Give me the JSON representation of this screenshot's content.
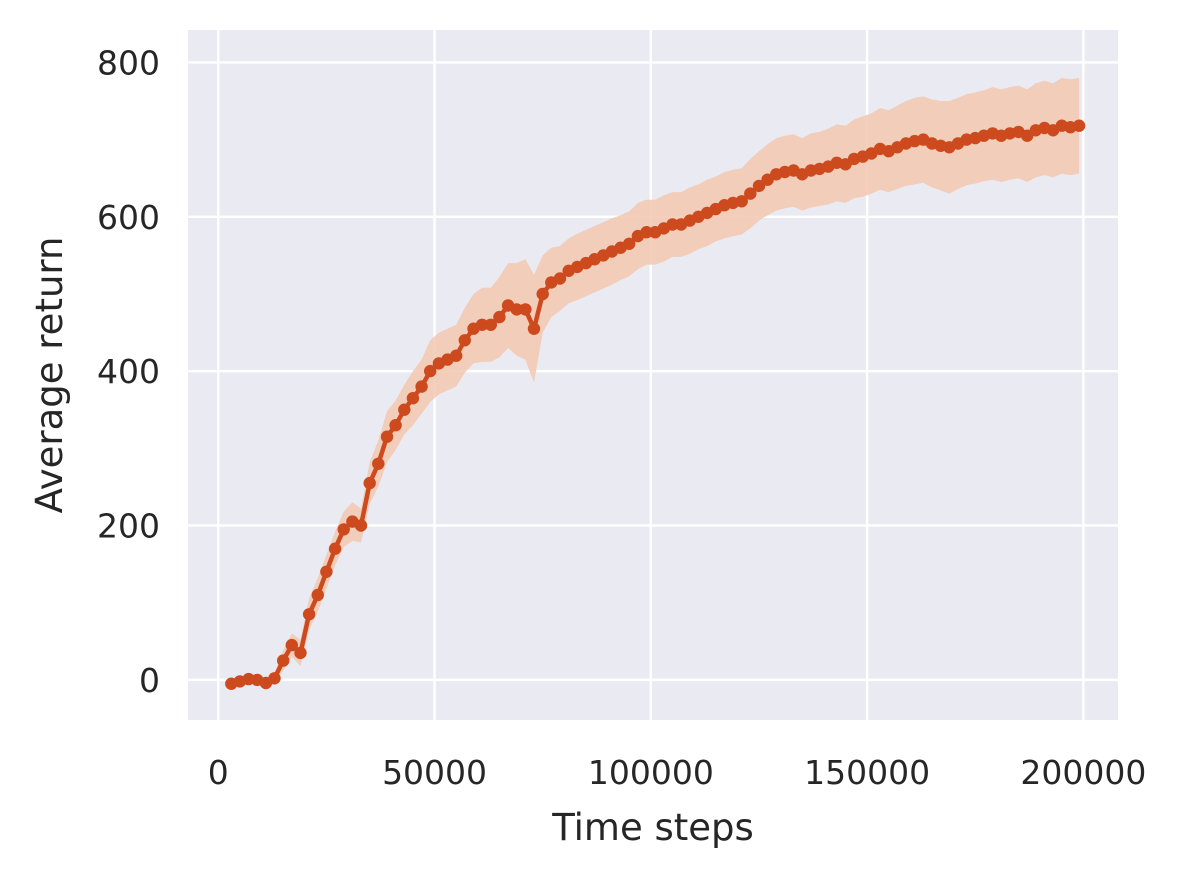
{
  "chart_data": {
    "type": "line",
    "title": "",
    "xlabel": "Time steps",
    "ylabel": "Average return",
    "xlim": [
      -7000,
      208000
    ],
    "ylim": [
      -52,
      842
    ],
    "xticks": [
      0,
      50000,
      100000,
      150000,
      200000
    ],
    "yticks": [
      0,
      200,
      400,
      600,
      800
    ],
    "grid": true,
    "legend": "none",
    "colors": {
      "background": "#eaeaf2",
      "grid": "#ffffff",
      "line": "#cc4a1d",
      "band": "#f2c8b0"
    },
    "series": [
      {
        "x": [
          3000,
          5000,
          7000,
          9000,
          11000,
          13000,
          15000,
          17000,
          19000,
          21000,
          23000,
          25000,
          27000,
          29000,
          31000,
          33000,
          35000,
          37000,
          39000,
          41000,
          43000,
          45000,
          47000,
          49000,
          51000,
          53000,
          55000,
          57000,
          59000,
          61000,
          63000,
          65000,
          67000,
          69000,
          71000,
          73000,
          75000,
          77000,
          79000,
          81000,
          83000,
          85000,
          87000,
          89000,
          91000,
          93000,
          95000,
          97000,
          99000,
          101000,
          103000,
          105000,
          107000,
          109000,
          111000,
          113000,
          115000,
          117000,
          119000,
          121000,
          123000,
          125000,
          127000,
          129000,
          131000,
          133000,
          135000,
          137000,
          139000,
          141000,
          143000,
          145000,
          147000,
          149000,
          151000,
          153000,
          155000,
          157000,
          159000,
          161000,
          163000,
          165000,
          167000,
          169000,
          171000,
          173000,
          175000,
          177000,
          179000,
          181000,
          183000,
          185000,
          187000,
          189000,
          191000,
          193000,
          195000,
          197000,
          199000
        ],
        "values": [
          -5,
          -2,
          1,
          0,
          -4,
          2,
          25,
          45,
          35,
          85,
          110,
          140,
          170,
          195,
          205,
          200,
          255,
          280,
          315,
          330,
          350,
          365,
          380,
          400,
          410,
          415,
          420,
          440,
          455,
          460,
          460,
          470,
          485,
          480,
          480,
          455,
          500,
          515,
          520,
          530,
          535,
          540,
          545,
          550,
          555,
          560,
          565,
          575,
          580,
          580,
          585,
          590,
          590,
          595,
          600,
          605,
          610,
          615,
          618,
          620,
          630,
          640,
          648,
          655,
          658,
          660,
          655,
          660,
          662,
          665,
          670,
          668,
          675,
          678,
          682,
          688,
          685,
          690,
          695,
          698,
          700,
          695,
          692,
          690,
          695,
          700,
          702,
          705,
          708,
          705,
          708,
          710,
          705,
          712,
          715,
          712,
          718,
          716,
          718
        ],
        "lower": [
          -10,
          -8,
          -5,
          -6,
          -10,
          -5,
          12,
          30,
          18,
          65,
          88,
          118,
          148,
          172,
          180,
          178,
          228,
          250,
          282,
          298,
          318,
          330,
          345,
          360,
          370,
          375,
          380,
          398,
          410,
          412,
          412,
          418,
          430,
          420,
          415,
          385,
          450,
          470,
          478,
          488,
          492,
          497,
          502,
          507,
          512,
          518,
          523,
          532,
          538,
          538,
          542,
          548,
          548,
          552,
          558,
          562,
          568,
          572,
          575,
          577,
          585,
          595,
          602,
          608,
          611,
          613,
          608,
          612,
          614,
          616,
          620,
          618,
          624,
          626,
          630,
          635,
          632,
          636,
          640,
          642,
          644,
          638,
          634,
          630,
          636,
          641,
          643,
          646,
          648,
          645,
          648,
          650,
          645,
          651,
          654,
          651,
          656,
          654,
          656
        ],
        "upper": [
          0,
          4,
          7,
          6,
          2,
          9,
          38,
          60,
          52,
          105,
          132,
          162,
          192,
          218,
          230,
          222,
          282,
          310,
          348,
          362,
          382,
          400,
          415,
          440,
          450,
          455,
          460,
          482,
          500,
          508,
          508,
          522,
          540,
          540,
          545,
          525,
          550,
          560,
          562,
          572,
          578,
          583,
          588,
          593,
          598,
          602,
          607,
          618,
          622,
          622,
          628,
          632,
          632,
          638,
          642,
          648,
          652,
          658,
          661,
          663,
          675,
          685,
          694,
          702,
          705,
          707,
          702,
          708,
          710,
          714,
          720,
          718,
          726,
          730,
          734,
          741,
          738,
          744,
          750,
          754,
          756,
          752,
          750,
          750,
          754,
          759,
          761,
          764,
          768,
          765,
          768,
          770,
          765,
          773,
          776,
          773,
          780,
          778,
          780
        ]
      }
    ]
  }
}
